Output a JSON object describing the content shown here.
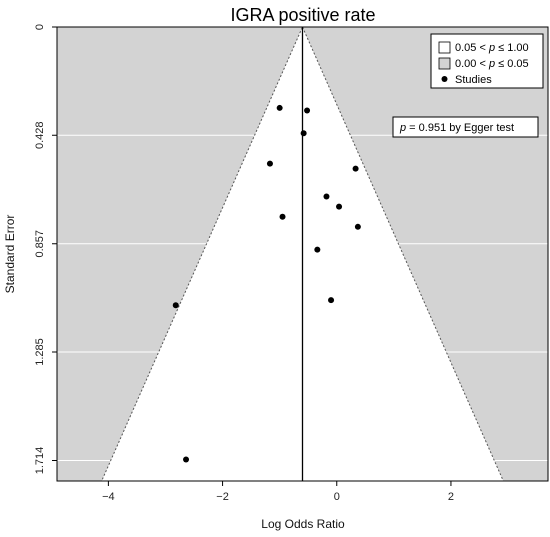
{
  "chart_data": {
    "type": "scatter",
    "title": "IGRA positive rate",
    "xlabel": "Log Odds Ratio",
    "ylabel": "Standard Error",
    "xlim": [
      -4.9,
      3.7
    ],
    "ylim": [
      1.795,
      0
    ],
    "x_ticks": [
      -4,
      -2,
      0,
      2
    ],
    "x_tick_labels": [
      "−4",
      "−2",
      "0",
      "2"
    ],
    "y_ticks": [
      0,
      0.428,
      0.857,
      1.285,
      1.714
    ],
    "y_tick_labels": [
      "0",
      "0.428",
      "0.857",
      "1.285",
      "1.714"
    ],
    "grid": true,
    "pooled_estimate": -0.6,
    "funnel_bands": [
      {
        "label": "0.05 < p ≤ 1.00",
        "label_parts": [
          "0.05 < ",
          "p",
          " ≤ 1.00"
        ],
        "color": "#ffffff"
      },
      {
        "label": "0.00 < p ≤ 0.05",
        "label_parts": [
          "0.00 < ",
          "p",
          " ≤ 0.05"
        ],
        "color": "#d3d3d3"
      }
    ],
    "legend": {
      "placement": "top-right",
      "studies_label": "Studies"
    },
    "annotation": {
      "text": "p = 0.951 by Egger test",
      "p_symbol": "p",
      "rest": " = 0.951 by Egger test"
    },
    "series": [
      {
        "name": "Studies",
        "points": [
          {
            "x": -1.0,
            "y": 0.32
          },
          {
            "x": -0.52,
            "y": 0.33
          },
          {
            "x": -0.58,
            "y": 0.42
          },
          {
            "x": -1.17,
            "y": 0.54
          },
          {
            "x": 0.33,
            "y": 0.56
          },
          {
            "x": -0.18,
            "y": 0.67
          },
          {
            "x": 0.04,
            "y": 0.71
          },
          {
            "x": -0.95,
            "y": 0.75
          },
          {
            "x": 0.37,
            "y": 0.79
          },
          {
            "x": -0.34,
            "y": 0.88
          },
          {
            "x": -0.1,
            "y": 1.08
          },
          {
            "x": -2.82,
            "y": 1.1
          },
          {
            "x": -2.64,
            "y": 1.71
          }
        ]
      }
    ]
  },
  "colors": {
    "background": "#ffffff",
    "contour_shade": "#d3d3d3",
    "funnel_fill": "#ffffff",
    "points": "#000000"
  }
}
